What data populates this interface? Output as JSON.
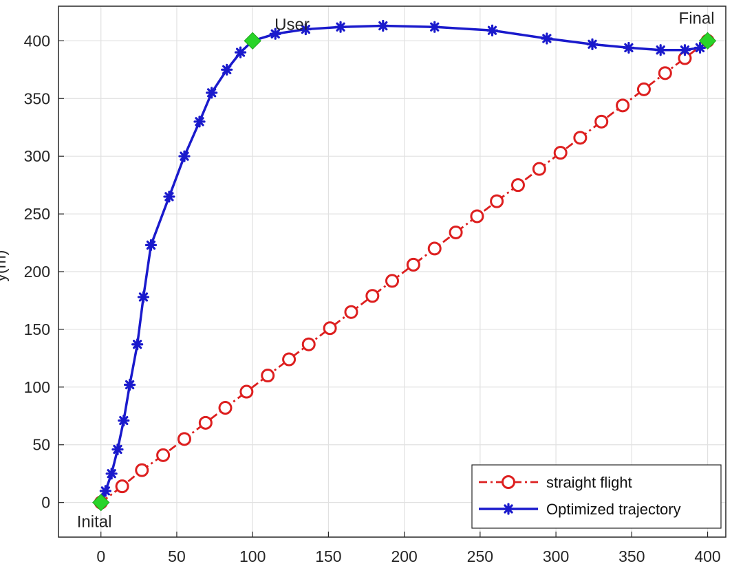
{
  "chart_data": {
    "type": "line",
    "title": "",
    "xlabel": "",
    "ylabel": "y(m)",
    "xlim": [
      -28,
      412
    ],
    "ylim": [
      -30,
      430
    ],
    "grid": true,
    "x_ticks": [
      0,
      50,
      100,
      150,
      200,
      250,
      300,
      350,
      400
    ],
    "y_ticks": [
      0,
      50,
      100,
      150,
      200,
      250,
      300,
      350,
      400
    ],
    "legend_position": "bottom-right",
    "series": [
      {
        "name": "straight flight",
        "color": "#dd1f1f",
        "line_style": "dash-dot",
        "marker": "circle",
        "points": [
          [
            0,
            0
          ],
          [
            14,
            14
          ],
          [
            27,
            28
          ],
          [
            41,
            41
          ],
          [
            55,
            55
          ],
          [
            69,
            69
          ],
          [
            82,
            82
          ],
          [
            96,
            96
          ],
          [
            110,
            110
          ],
          [
            124,
            124
          ],
          [
            137,
            137
          ],
          [
            151,
            151
          ],
          [
            165,
            165
          ],
          [
            179,
            179
          ],
          [
            192,
            192
          ],
          [
            206,
            206
          ],
          [
            220,
            220
          ],
          [
            234,
            234
          ],
          [
            248,
            248
          ],
          [
            261,
            261
          ],
          [
            275,
            275
          ],
          [
            289,
            289
          ],
          [
            303,
            303
          ],
          [
            316,
            316
          ],
          [
            330,
            330
          ],
          [
            344,
            344
          ],
          [
            358,
            358
          ],
          [
            372,
            372
          ],
          [
            385,
            385
          ],
          [
            400,
            400
          ]
        ]
      },
      {
        "name": "Optimized trajectory",
        "color": "#1a1acc",
        "line_style": "solid",
        "marker": "star",
        "points": [
          [
            0,
            0
          ],
          [
            3,
            10
          ],
          [
            7,
            25
          ],
          [
            11,
            46
          ],
          [
            15,
            71
          ],
          [
            19,
            102
          ],
          [
            24,
            137
          ],
          [
            28,
            178
          ],
          [
            33,
            223
          ],
          [
            45,
            265
          ],
          [
            55,
            300
          ],
          [
            65,
            330
          ],
          [
            73,
            355
          ],
          [
            83,
            375
          ],
          [
            92,
            390
          ],
          [
            100,
            400
          ],
          [
            115,
            406
          ],
          [
            135,
            410
          ],
          [
            158,
            412
          ],
          [
            186,
            413
          ],
          [
            220,
            412
          ],
          [
            258,
            409
          ],
          [
            294,
            402
          ],
          [
            324,
            397
          ],
          [
            348,
            394
          ],
          [
            369,
            392
          ],
          [
            385,
            392
          ],
          [
            395,
            394
          ],
          [
            400,
            400
          ]
        ]
      }
    ],
    "key_points": [
      {
        "label": "Inital",
        "x": 0,
        "y": 0,
        "color": "#29d429"
      },
      {
        "label": "User",
        "x": 100,
        "y": 400,
        "color": "#29d429"
      },
      {
        "label": "Final",
        "x": 400,
        "y": 400,
        "color": "#29d429"
      }
    ]
  }
}
